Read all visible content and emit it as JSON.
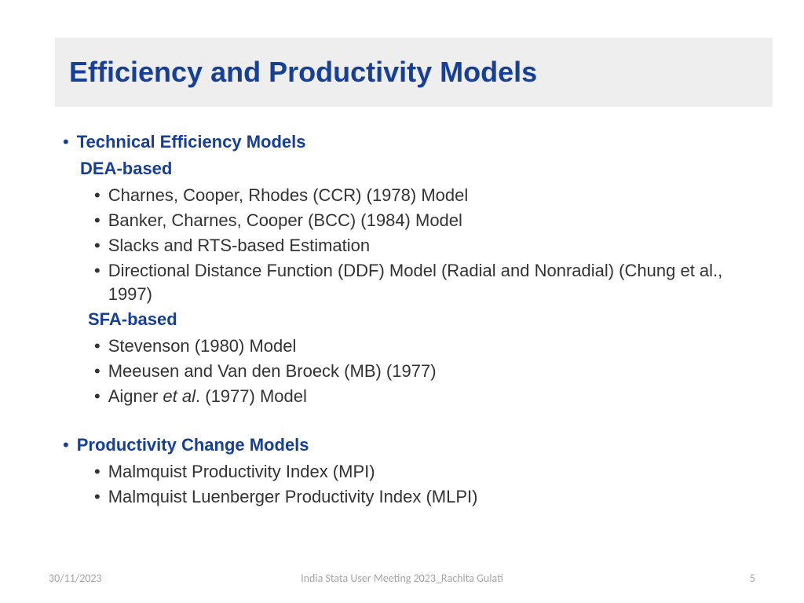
{
  "colors": {
    "title_bg": "#eeeeef",
    "heading_color": "#153f98",
    "body_text": "#333333",
    "footer_text": "#a6a6a6",
    "page_bg": "#ffffff"
  },
  "title": "Efficiency and Productivity Models",
  "sections": [
    {
      "heading": "Technical Efficiency Models",
      "groups": [
        {
          "subheading": "DEA-based",
          "items": [
            "Charnes, Cooper, Rhodes (CCR) (1978) Model",
            "Banker, Charnes, Cooper (BCC) (1984) Model",
            "Slacks and RTS-based Estimation",
            "Directional Distance Function (DDF) Model (Radial and Nonradial) (Chung et al., 1997)"
          ]
        },
        {
          "subheading": "SFA-based",
          "items": [
            "Stevenson (1980) Model",
            "Meeusen and Van den Broeck (MB) (1977)",
            "Aigner et al. (1977) Model"
          ]
        }
      ]
    },
    {
      "heading": "Productivity Change Models",
      "groups": [
        {
          "subheading": null,
          "items": [
            "Malmquist Productivity Index (MPI)",
            "Malmquist Luenberger Productivity Index (MLPI)"
          ]
        }
      ]
    }
  ],
  "footer": {
    "date": "30/11/2023",
    "center": "India Stata User Meeting 2023_Rachita Gulati",
    "page": "5"
  }
}
